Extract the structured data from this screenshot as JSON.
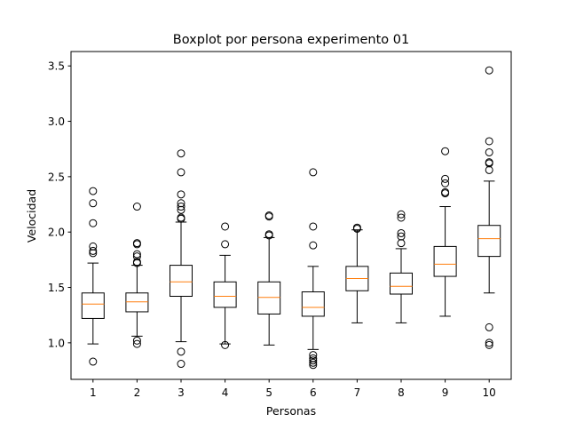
{
  "chart_data": {
    "type": "boxplot",
    "title": "Boxplot por persona experimento 01",
    "xlabel": "Personas",
    "ylabel": "Velocidad",
    "ylim": [
      0.67,
      3.63
    ],
    "yticks": [
      1.0,
      1.5,
      2.0,
      2.5,
      3.0,
      3.5
    ],
    "ytick_labels": [
      "1.0",
      "1.5",
      "2.0",
      "2.5",
      "3.0",
      "3.5"
    ],
    "grid": false,
    "colors": {
      "box": "#000000",
      "median": "#ff7f0e",
      "flier": "#000000"
    },
    "categories": [
      "1",
      "2",
      "3",
      "4",
      "5",
      "6",
      "7",
      "8",
      "9",
      "10"
    ],
    "boxes": [
      {
        "label": "1",
        "whisker_low": 0.99,
        "q1": 1.22,
        "median": 1.35,
        "q3": 1.45,
        "whisker_high": 1.72,
        "fliers": [
          0.83,
          1.81,
          1.83,
          1.87,
          2.08,
          2.26,
          2.37
        ]
      },
      {
        "label": "2",
        "whisker_low": 1.06,
        "q1": 1.28,
        "median": 1.37,
        "q3": 1.45,
        "whisker_high": 1.7,
        "fliers": [
          0.99,
          1.02,
          1.72,
          1.73,
          1.78,
          1.8,
          1.89,
          1.9,
          2.23
        ]
      },
      {
        "label": "3",
        "whisker_low": 1.01,
        "q1": 1.42,
        "median": 1.55,
        "q3": 1.7,
        "whisker_high": 2.09,
        "fliers": [
          0.81,
          0.92,
          2.12,
          2.13,
          2.2,
          2.23,
          2.26,
          2.34,
          2.54,
          2.71
        ]
      },
      {
        "label": "4",
        "whisker_low": 0.99,
        "q1": 1.32,
        "median": 1.42,
        "q3": 1.55,
        "whisker_high": 1.79,
        "fliers": [
          0.98,
          1.89,
          2.05
        ]
      },
      {
        "label": "5",
        "whisker_low": 0.98,
        "q1": 1.26,
        "median": 1.41,
        "q3": 1.55,
        "whisker_high": 1.95,
        "fliers": [
          1.97,
          1.98,
          2.14,
          2.15
        ]
      },
      {
        "label": "6",
        "whisker_low": 0.94,
        "q1": 1.24,
        "median": 1.32,
        "q3": 1.46,
        "whisker_high": 1.69,
        "fliers": [
          0.8,
          0.82,
          0.84,
          0.86,
          0.89,
          1.88,
          2.05,
          2.54
        ]
      },
      {
        "label": "7",
        "whisker_low": 1.18,
        "q1": 1.47,
        "median": 1.58,
        "q3": 1.69,
        "whisker_high": 2.02,
        "fliers": [
          2.03,
          2.04
        ]
      },
      {
        "label": "8",
        "whisker_low": 1.18,
        "q1": 1.44,
        "median": 1.51,
        "q3": 1.63,
        "whisker_high": 1.85,
        "fliers": [
          1.9,
          1.96,
          1.99,
          2.13,
          2.16
        ]
      },
      {
        "label": "9",
        "whisker_low": 1.24,
        "q1": 1.6,
        "median": 1.71,
        "q3": 1.87,
        "whisker_high": 2.23,
        "fliers": [
          2.35,
          2.36,
          2.44,
          2.48,
          2.73
        ]
      },
      {
        "label": "10",
        "whisker_low": 1.45,
        "q1": 1.78,
        "median": 1.94,
        "q3": 2.06,
        "whisker_high": 2.46,
        "fliers": [
          0.98,
          1.0,
          1.14,
          2.56,
          2.62,
          2.63,
          2.72,
          2.82,
          3.46
        ]
      }
    ]
  }
}
